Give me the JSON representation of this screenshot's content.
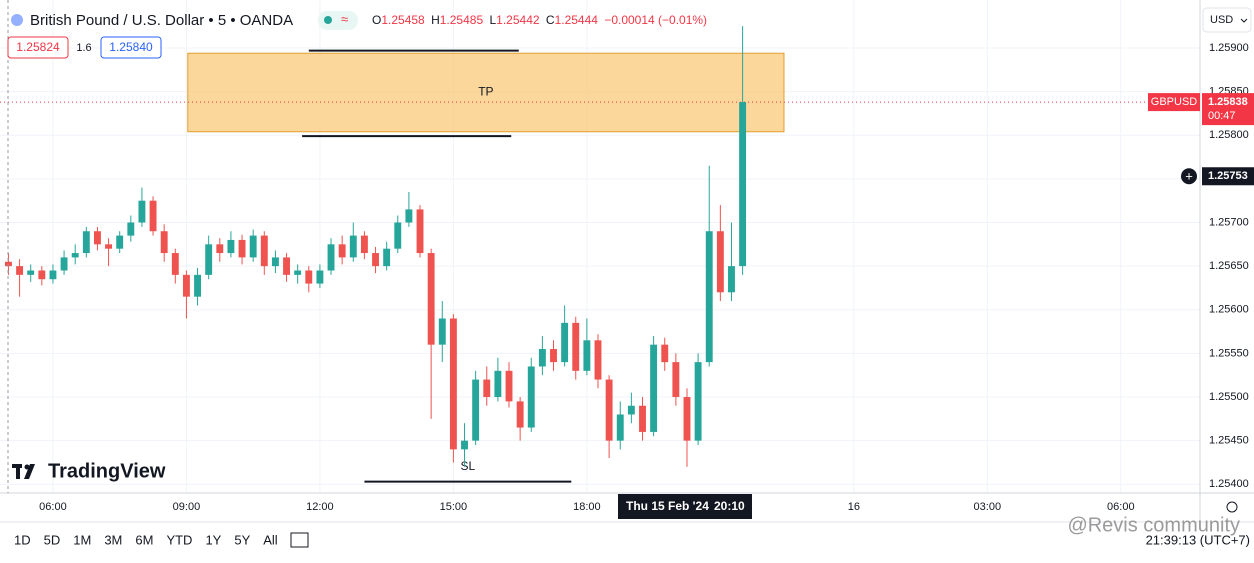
{
  "chart_data": {
    "type": "candlestick",
    "title": "British Pound / U.S. Dollar • 5 • OANDA",
    "header_values": [
      {
        "label": "O",
        "value": 1.25458
      },
      {
        "label": "H",
        "value": 1.25485
      },
      {
        "label": "L",
        "value": 1.25442
      },
      {
        "label": "C",
        "value": 1.25444
      }
    ],
    "change": "−0.00014 (−0.01%)",
    "sell_price": "1.25824",
    "spread": "1.6",
    "buy_price": "1.25840",
    "currency": "USD",
    "up_color": "#26a69a",
    "down_color": "#ef5350",
    "grid": true,
    "xlim": [
      4.81,
      31.78
    ],
    "ylim": [
      1.2539,
      1.25955
    ],
    "xticks": [
      {
        "value": 6,
        "label": "06:00"
      },
      {
        "value": 9,
        "label": "09:00"
      },
      {
        "value": 12,
        "label": "12:00"
      },
      {
        "value": 15,
        "label": "15:00"
      },
      {
        "value": 18,
        "label": "18:00"
      },
      {
        "value": 24,
        "label": "16"
      },
      {
        "value": 27,
        "label": "03:00"
      },
      {
        "value": 30,
        "label": "06:00"
      }
    ],
    "yticks": [
      {
        "value": 1.254,
        "label": "1.25400"
      },
      {
        "value": 1.2545,
        "label": "1.25450"
      },
      {
        "value": 1.255,
        "label": "1.25500"
      },
      {
        "value": 1.2555,
        "label": "1.25550"
      },
      {
        "value": 1.256,
        "label": "1.25600"
      },
      {
        "value": 1.2565,
        "label": "1.25650"
      },
      {
        "value": 1.257,
        "label": "1.25700"
      },
      {
        "value": 1.2575,
        "label": "1.25750"
      },
      {
        "value": 1.258,
        "label": "1.25800"
      },
      {
        "value": 1.2585,
        "label": "1.25850"
      },
      {
        "value": 1.259,
        "label": "1.25900"
      }
    ],
    "x": [
      5,
      5.25,
      5.5,
      5.75,
      6,
      6.25,
      6.5,
      6.75,
      7,
      7.25,
      7.5,
      7.75,
      8,
      8.25,
      8.5,
      8.75,
      9,
      9.25,
      9.5,
      9.75,
      10,
      10.25,
      10.5,
      10.75,
      11,
      11.25,
      11.5,
      11.75,
      12,
      12.25,
      12.5,
      12.75,
      13,
      13.25,
      13.5,
      13.75,
      14,
      14.25,
      14.5,
      14.75,
      15,
      15.25,
      15.5,
      15.75,
      16,
      16.25,
      16.5,
      16.75,
      17,
      17.25,
      17.5,
      17.75,
      18,
      18.25,
      18.5,
      18.75,
      19,
      19.25,
      19.5,
      19.75,
      20,
      20.25,
      20.5,
      20.75,
      21,
      21.25,
      21.5
    ],
    "open": [
      1.25655,
      1.2565,
      1.2564,
      1.25645,
      1.25635,
      1.25645,
      1.2566,
      1.25665,
      1.2569,
      1.25675,
      1.2567,
      1.25685,
      1.257,
      1.25725,
      1.2569,
      1.25665,
      1.2564,
      1.25615,
      1.2564,
      1.25675,
      1.25665,
      1.2568,
      1.2566,
      1.25685,
      1.2565,
      1.2566,
      1.2564,
      1.25645,
      1.2563,
      1.25645,
      1.25675,
      1.2566,
      1.25685,
      1.25665,
      1.2565,
      1.2567,
      1.257,
      1.25715,
      1.25665,
      1.2556,
      1.2559,
      1.2544,
      1.2545,
      1.2552,
      1.255,
      1.2553,
      1.25495,
      1.25465,
      1.25535,
      1.25555,
      1.2554,
      1.25585,
      1.2553,
      1.25565,
      1.2552,
      1.2545,
      1.2548,
      1.2549,
      1.2546,
      1.2556,
      1.2554,
      1.255,
      1.2545,
      1.2554,
      1.2569,
      1.2562,
      1.2565
    ],
    "high": [
      1.25665,
      1.25658,
      1.25652,
      1.2565,
      1.25652,
      1.25668,
      1.25675,
      1.25695,
      1.25695,
      1.25682,
      1.2569,
      1.25708,
      1.2574,
      1.2573,
      1.25698,
      1.2567,
      1.25645,
      1.25648,
      1.25685,
      1.25682,
      1.2569,
      1.25686,
      1.25692,
      1.2569,
      1.25668,
      1.25665,
      1.25652,
      1.2565,
      1.25652,
      1.25682,
      1.25685,
      1.257,
      1.2569,
      1.25672,
      1.25678,
      1.25708,
      1.25735,
      1.2572,
      1.2567,
      1.2561,
      1.25595,
      1.2547,
      1.2553,
      1.25535,
      1.25545,
      1.2554,
      1.255,
      1.25545,
      1.2557,
      1.25565,
      1.25605,
      1.25592,
      1.2559,
      1.25572,
      1.25525,
      1.25495,
      1.25505,
      1.255,
      1.2557,
      1.25568,
      1.2555,
      1.2551,
      1.2555,
      1.25765,
      1.2572,
      1.257,
      1.25925
    ],
    "low": [
      1.2564,
      1.25615,
      1.25632,
      1.25628,
      1.2563,
      1.2564,
      1.25652,
      1.2566,
      1.25668,
      1.2565,
      1.25665,
      1.25678,
      1.25695,
      1.25685,
      1.25655,
      1.2563,
      1.2559,
      1.25605,
      1.25635,
      1.25655,
      1.2566,
      1.25652,
      1.25655,
      1.2564,
      1.25642,
      1.25632,
      1.2563,
      1.2562,
      1.25625,
      1.2564,
      1.25652,
      1.25655,
      1.25658,
      1.25642,
      1.25645,
      1.25665,
      1.25695,
      1.2566,
      1.25475,
      1.2554,
      1.25425,
      1.2542,
      1.25445,
      1.2549,
      1.25495,
      1.25488,
      1.2545,
      1.2546,
      1.25525,
      1.2553,
      1.25535,
      1.2552,
      1.25525,
      1.2551,
      1.2543,
      1.2544,
      1.2547,
      1.2545,
      1.25455,
      1.2553,
      1.2549,
      1.2542,
      1.25445,
      1.25535,
      1.2561,
      1.2561,
      1.2564
    ],
    "close": [
      1.2565,
      1.2564,
      1.25645,
      1.25635,
      1.25645,
      1.2566,
      1.25665,
      1.2569,
      1.25675,
      1.2567,
      1.25685,
      1.257,
      1.25725,
      1.2569,
      1.25665,
      1.2564,
      1.25615,
      1.2564,
      1.25675,
      1.25665,
      1.2568,
      1.2566,
      1.25685,
      1.2565,
      1.2566,
      1.2564,
      1.25645,
      1.2563,
      1.25645,
      1.25675,
      1.2566,
      1.25685,
      1.25665,
      1.2565,
      1.2567,
      1.257,
      1.25715,
      1.25665,
      1.2556,
      1.2559,
      1.2544,
      1.2545,
      1.2552,
      1.255,
      1.2553,
      1.25495,
      1.25465,
      1.25535,
      1.25555,
      1.2554,
      1.25585,
      1.2553,
      1.25565,
      1.2552,
      1.2545,
      1.2548,
      1.2549,
      1.2546,
      1.2556,
      1.2554,
      1.255,
      1.2545,
      1.2554,
      1.2569,
      1.2562,
      1.2565,
      1.25838
    ],
    "zones": [
      {
        "label": "TP",
        "y": [
          1.25804,
          1.25894
        ],
        "x": [
          9.03,
          22.43
        ],
        "color": "#f9c97a"
      }
    ],
    "lines": [
      {
        "label": "SL",
        "y": 1.25403,
        "x": [
          13.0,
          17.65
        ]
      },
      {
        "y": 1.25897,
        "x": [
          11.75,
          16.47
        ]
      },
      {
        "y": 1.25799,
        "x": [
          11.6,
          16.3
        ]
      }
    ],
    "last_price": {
      "symbol": "GBPUSD",
      "value": 1.25838,
      "countdown": "00:47",
      "color": "#f23645"
    },
    "crosshair": {
      "price": 1.25753,
      "date": "Thu 15 Feb '24",
      "time": "20:10"
    },
    "timeframes": [
      "1D",
      "5D",
      "1M",
      "3M",
      "6M",
      "YTD",
      "1Y",
      "5Y",
      "All"
    ],
    "clock": "21:39:13 (UTC+7)",
    "brand": "TradingView",
    "watermark": "@Revis community"
  }
}
